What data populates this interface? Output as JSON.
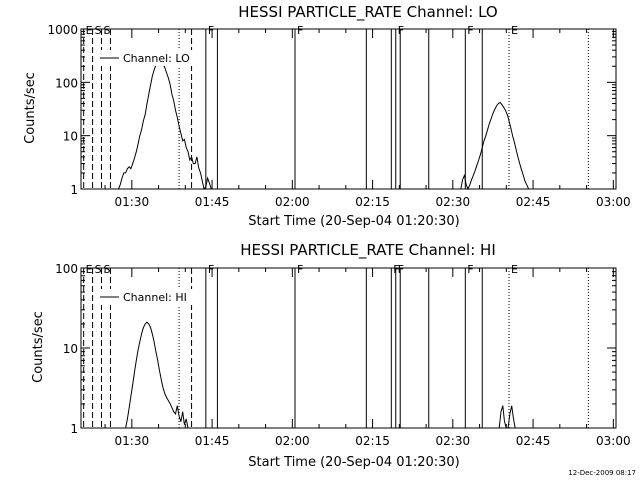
{
  "chart_data": [
    {
      "type": "line",
      "title": "HESSI PARTICLE_RATE Channel: LO",
      "xlabel": "Start Time (20-Sep-04 01:20:30)",
      "ylabel": "Counts/sec",
      "yscale": "log",
      "ylim": [
        1,
        1000
      ],
      "xlim": [
        "01:20:30",
        "03:00:30"
      ],
      "grid": false,
      "x_tick_labels": [
        "01:30",
        "01:45",
        "02:00",
        "02:15",
        "02:30",
        "02:45",
        "03:00"
      ],
      "y_tick_labels": [
        "1",
        "10",
        "100",
        "1000"
      ],
      "legend": {
        "location": "top-left",
        "entries": [
          "Channel: LO"
        ]
      },
      "event_markers": [
        {
          "time": "01:21:00",
          "label": "E",
          "style": "dashed"
        },
        {
          "time": "01:22:40",
          "label": "S",
          "style": "dashed"
        },
        {
          "time": "01:24:20",
          "label": "S",
          "style": "dashed"
        },
        {
          "time": "01:26:00",
          "label": "",
          "style": "dashed"
        },
        {
          "time": "01:38:50",
          "label": "",
          "style": "dotted"
        },
        {
          "time": "01:41:10",
          "label": "",
          "style": "dashed"
        },
        {
          "time": "01:43:50",
          "label": "F",
          "style": "solid"
        },
        {
          "time": "01:46:00",
          "label": "",
          "style": "solid"
        },
        {
          "time": "02:00:30",
          "label": "F",
          "style": "solid"
        },
        {
          "time": "02:13:50",
          "label": "",
          "style": "solid"
        },
        {
          "time": "02:18:30",
          "label": "",
          "style": "solid"
        },
        {
          "time": "02:19:20",
          "label": "F",
          "style": "solid"
        },
        {
          "time": "02:20:10",
          "label": "",
          "style": "solid"
        },
        {
          "time": "02:25:30",
          "label": "",
          "style": "solid"
        },
        {
          "time": "02:32:20",
          "label": "F",
          "style": "solid"
        },
        {
          "time": "02:35:30",
          "label": "",
          "style": "solid"
        },
        {
          "time": "02:40:30",
          "label": "E",
          "style": "dotted"
        },
        {
          "time": "02:55:20",
          "label": "",
          "style": "dotted"
        }
      ],
      "series": [
        {
          "name": "Channel: LO",
          "x": [
            "01:27:30",
            "01:27:50",
            "01:28:10",
            "01:28:30",
            "01:28:50",
            "01:29:10",
            "01:29:30",
            "01:29:50",
            "01:30:10",
            "01:30:30",
            "01:30:50",
            "01:31:10",
            "01:31:30",
            "01:31:50",
            "01:32:10",
            "01:32:30",
            "01:32:50",
            "01:33:10",
            "01:33:30",
            "01:33:50",
            "01:34:10",
            "01:34:30",
            "01:34:50",
            "01:35:10",
            "01:35:30",
            "01:35:50",
            "01:36:10",
            "01:36:30",
            "01:36:50",
            "01:37:10",
            "01:37:30",
            "01:37:50",
            "01:38:10",
            "01:38:30",
            "01:38:50",
            "01:39:10",
            "01:39:30",
            "01:39:50",
            "01:40:10",
            "01:40:30",
            "01:40:50",
            "01:41:10",
            "01:41:30",
            "01:41:50",
            "01:42:10",
            "01:42:30",
            "01:42:50",
            "01:43:10",
            "01:43:30",
            "01:43:50",
            "01:44:10",
            "01:44:30",
            "01:44:50",
            "01:45:10"
          ],
          "y": [
            1.0,
            1.2,
            1.6,
            2.0,
            2.0,
            2.4,
            2.6,
            2.4,
            3.0,
            3.8,
            5.0,
            7.0,
            10,
            13,
            19,
            25,
            40,
            60,
            90,
            130,
            170,
            210,
            240,
            260,
            250,
            220,
            190,
            150,
            120,
            90,
            60,
            45,
            30,
            22,
            15,
            11,
            8.0,
            8.5,
            6.0,
            5.0,
            3.5,
            4.0,
            3.0,
            3.0,
            4.0,
            2.5,
            2.0,
            1.4,
            1.0,
            1.1,
            1.6,
            1.3,
            1.0,
            1.0
          ]
        },
        {
          "name": "Channel: LO",
          "x": [
            "02:31:30",
            "02:31:50",
            "02:32:10",
            "02:32:30",
            "02:32:50",
            "02:33:10",
            "02:33:30",
            "02:33:50",
            "02:34:10",
            "02:34:30",
            "02:34:50",
            "02:35:10",
            "02:35:30",
            "02:35:50",
            "02:36:10",
            "02:36:30",
            "02:36:50",
            "02:37:10",
            "02:37:30",
            "02:37:50",
            "02:38:10",
            "02:38:30",
            "02:38:50",
            "02:39:10",
            "02:39:30",
            "02:39:50",
            "02:40:10",
            "02:40:30",
            "02:40:50",
            "02:41:10",
            "02:41:30",
            "02:41:50",
            "02:42:10",
            "02:42:30",
            "02:42:50",
            "02:43:10",
            "02:43:30",
            "02:43:50",
            "02:44:10",
            "02:44:30",
            "02:44:50"
          ],
          "y": [
            1.0,
            1.5,
            1.8,
            1.2,
            1.0,
            1.2,
            1.5,
            1.8,
            2.2,
            2.8,
            3.5,
            4.5,
            6.0,
            8.0,
            10,
            13,
            17,
            21,
            26,
            31,
            36,
            40,
            42,
            38,
            34,
            30,
            25,
            19,
            14,
            10,
            7.5,
            5.5,
            4.0,
            3.0,
            2.3,
            1.8,
            1.4,
            1.2,
            1.0,
            1.0,
            1.0
          ]
        }
      ]
    },
    {
      "type": "line",
      "title": "HESSI PARTICLE_RATE Channel: HI",
      "xlabel": "Start Time (20-Sep-04 01:20:30)",
      "ylabel": "Counts/sec",
      "yscale": "log",
      "ylim": [
        1,
        100
      ],
      "xlim": [
        "01:20:30",
        "03:00:30"
      ],
      "grid": false,
      "x_tick_labels": [
        "01:30",
        "01:45",
        "02:00",
        "02:15",
        "02:30",
        "02:45",
        "03:00"
      ],
      "y_tick_labels": [
        "1",
        "10",
        "100"
      ],
      "legend": {
        "location": "top-left",
        "entries": [
          "Channel: HI"
        ]
      },
      "event_markers": [
        {
          "time": "01:21:00",
          "label": "E",
          "style": "dashed"
        },
        {
          "time": "01:22:40",
          "label": "S",
          "style": "dashed"
        },
        {
          "time": "01:24:20",
          "label": "S",
          "style": "dashed"
        },
        {
          "time": "01:26:00",
          "label": "",
          "style": "dashed"
        },
        {
          "time": "01:38:50",
          "label": "",
          "style": "dotted"
        },
        {
          "time": "01:41:10",
          "label": "",
          "style": "dashed"
        },
        {
          "time": "01:43:50",
          "label": "F",
          "style": "solid"
        },
        {
          "time": "01:46:00",
          "label": "",
          "style": "solid"
        },
        {
          "time": "02:00:30",
          "label": "F",
          "style": "solid"
        },
        {
          "time": "02:13:50",
          "label": "",
          "style": "solid"
        },
        {
          "time": "02:18:30",
          "label": "F",
          "style": "solid"
        },
        {
          "time": "02:19:20",
          "label": "F",
          "style": "solid"
        },
        {
          "time": "02:20:10",
          "label": "",
          "style": "solid"
        },
        {
          "time": "02:25:30",
          "label": "",
          "style": "solid"
        },
        {
          "time": "02:32:20",
          "label": "F",
          "style": "solid"
        },
        {
          "time": "02:35:30",
          "label": "",
          "style": "solid"
        },
        {
          "time": "02:40:30",
          "label": "E",
          "style": "dotted"
        },
        {
          "time": "02:55:20",
          "label": "",
          "style": "dotted"
        }
      ],
      "series": [
        {
          "name": "Channel: HI",
          "x": [
            "01:28:50",
            "01:29:10",
            "01:29:30",
            "01:29:50",
            "01:30:10",
            "01:30:30",
            "01:30:50",
            "01:31:10",
            "01:31:30",
            "01:31:50",
            "01:32:10",
            "01:32:30",
            "01:32:50",
            "01:33:10",
            "01:33:30",
            "01:33:50",
            "01:34:10",
            "01:34:30",
            "01:34:50",
            "01:35:10",
            "01:35:30",
            "01:35:50",
            "01:36:10",
            "01:36:30",
            "01:36:50",
            "01:37:10",
            "01:37:30",
            "01:37:50",
            "01:38:10",
            "01:38:30",
            "01:38:50",
            "01:39:10",
            "01:39:30",
            "01:39:50",
            "01:40:10",
            "01:40:30"
          ],
          "y": [
            1.0,
            1.3,
            1.8,
            2.5,
            3.5,
            5.0,
            7.0,
            9.5,
            12,
            15,
            18,
            20,
            21,
            20,
            18,
            15,
            12,
            9.0,
            7.0,
            5.2,
            4.0,
            3.2,
            2.7,
            2.4,
            2.2,
            2.0,
            1.8,
            1.6,
            1.5,
            1.9,
            1.4,
            1.2,
            1.6,
            1.1,
            1.3,
            1.0
          ]
        },
        {
          "name": "Channel: HI",
          "x": [
            "02:38:40",
            "02:39:00",
            "02:39:20",
            "02:39:40",
            "02:40:00",
            "02:40:20",
            "02:40:40",
            "02:41:00",
            "02:41:20",
            "02:41:40"
          ],
          "y": [
            1.0,
            1.6,
            1.9,
            1.2,
            1.0,
            1.0,
            1.5,
            1.9,
            1.3,
            1.0
          ]
        }
      ]
    }
  ],
  "timestamp": "12-Dec-2009 08:17"
}
